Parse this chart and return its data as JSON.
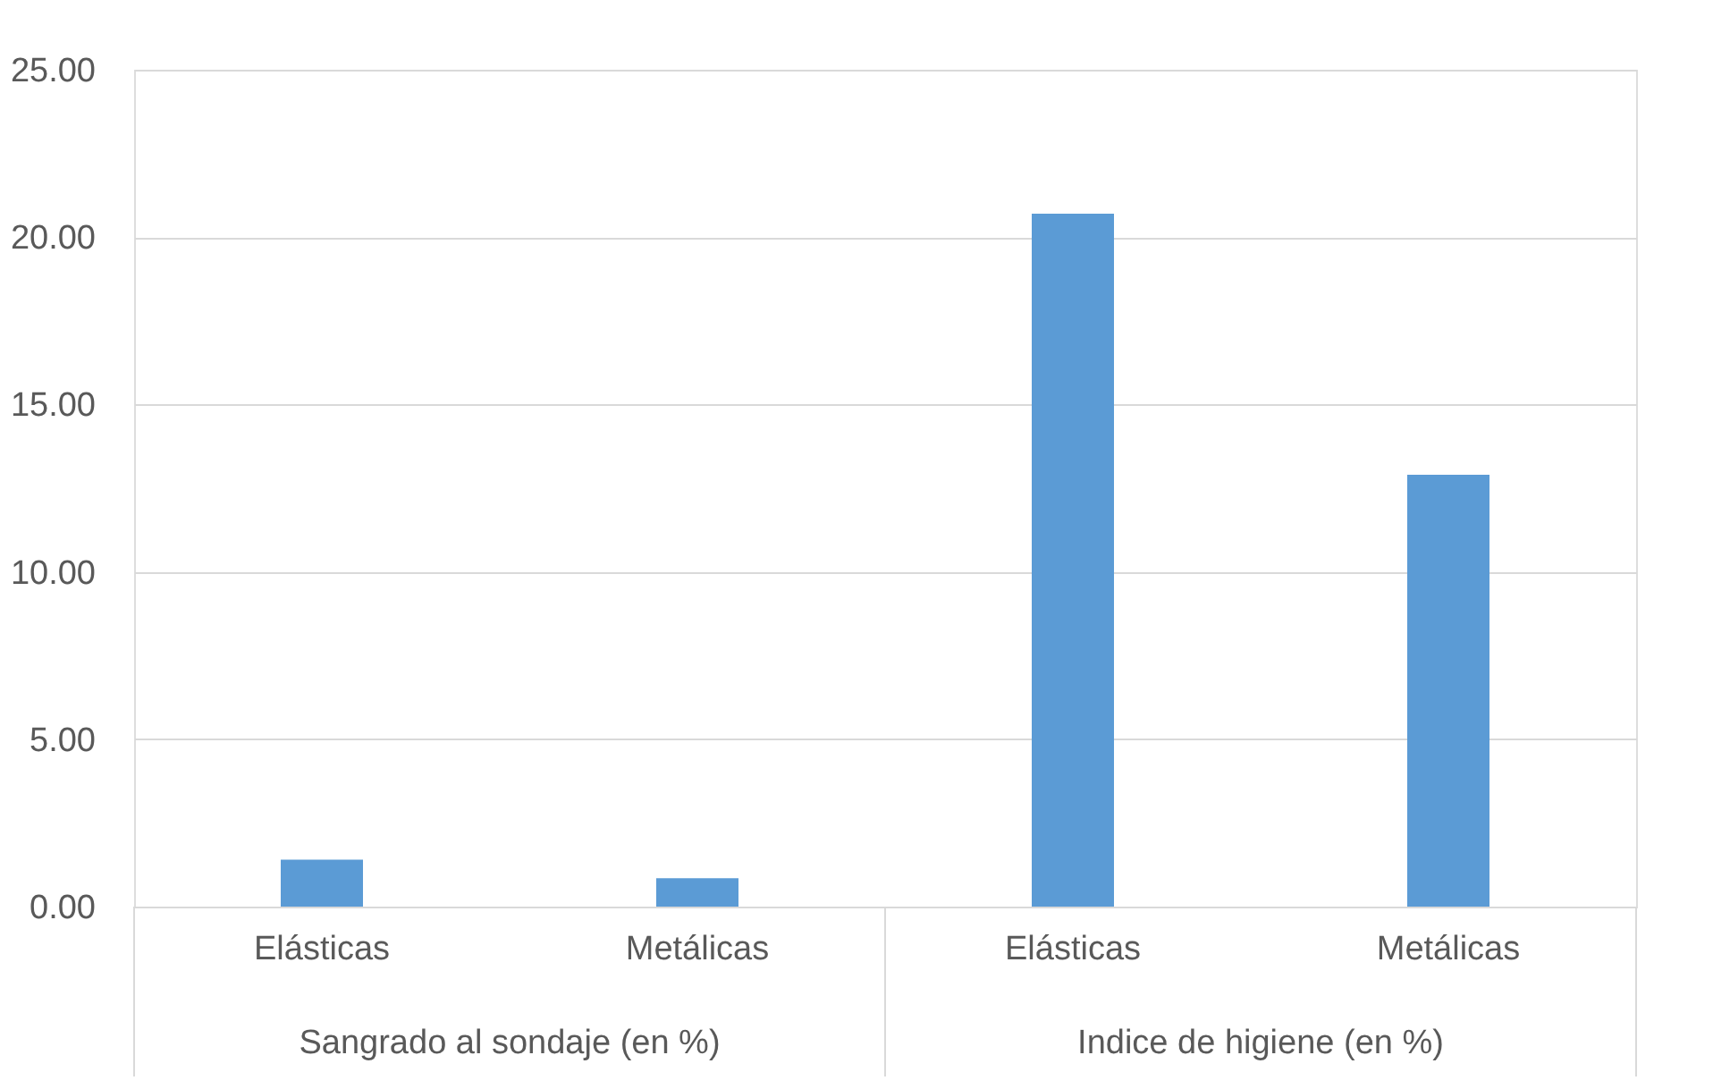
{
  "chart_data": {
    "type": "bar",
    "categories": [
      "Elásticas",
      "Metálicas",
      "Elásticas",
      "Metálicas"
    ],
    "values": [
      1.4,
      0.85,
      20.7,
      12.9
    ],
    "color": "#5b9bd5",
    "ylim": [
      0,
      25
    ],
    "yticks": [
      {
        "value": 0,
        "label": "0.00"
      },
      {
        "value": 5,
        "label": "5.00"
      },
      {
        "value": 10,
        "label": "10.00"
      },
      {
        "value": 15,
        "label": "15.00"
      },
      {
        "value": 20,
        "label": "20.00"
      },
      {
        "value": 25,
        "label": "25.00"
      }
    ],
    "grid": "y",
    "annotations": [
      "Sangrado al sondaje  (en %)",
      "Indice de higiene (en %)"
    ]
  }
}
